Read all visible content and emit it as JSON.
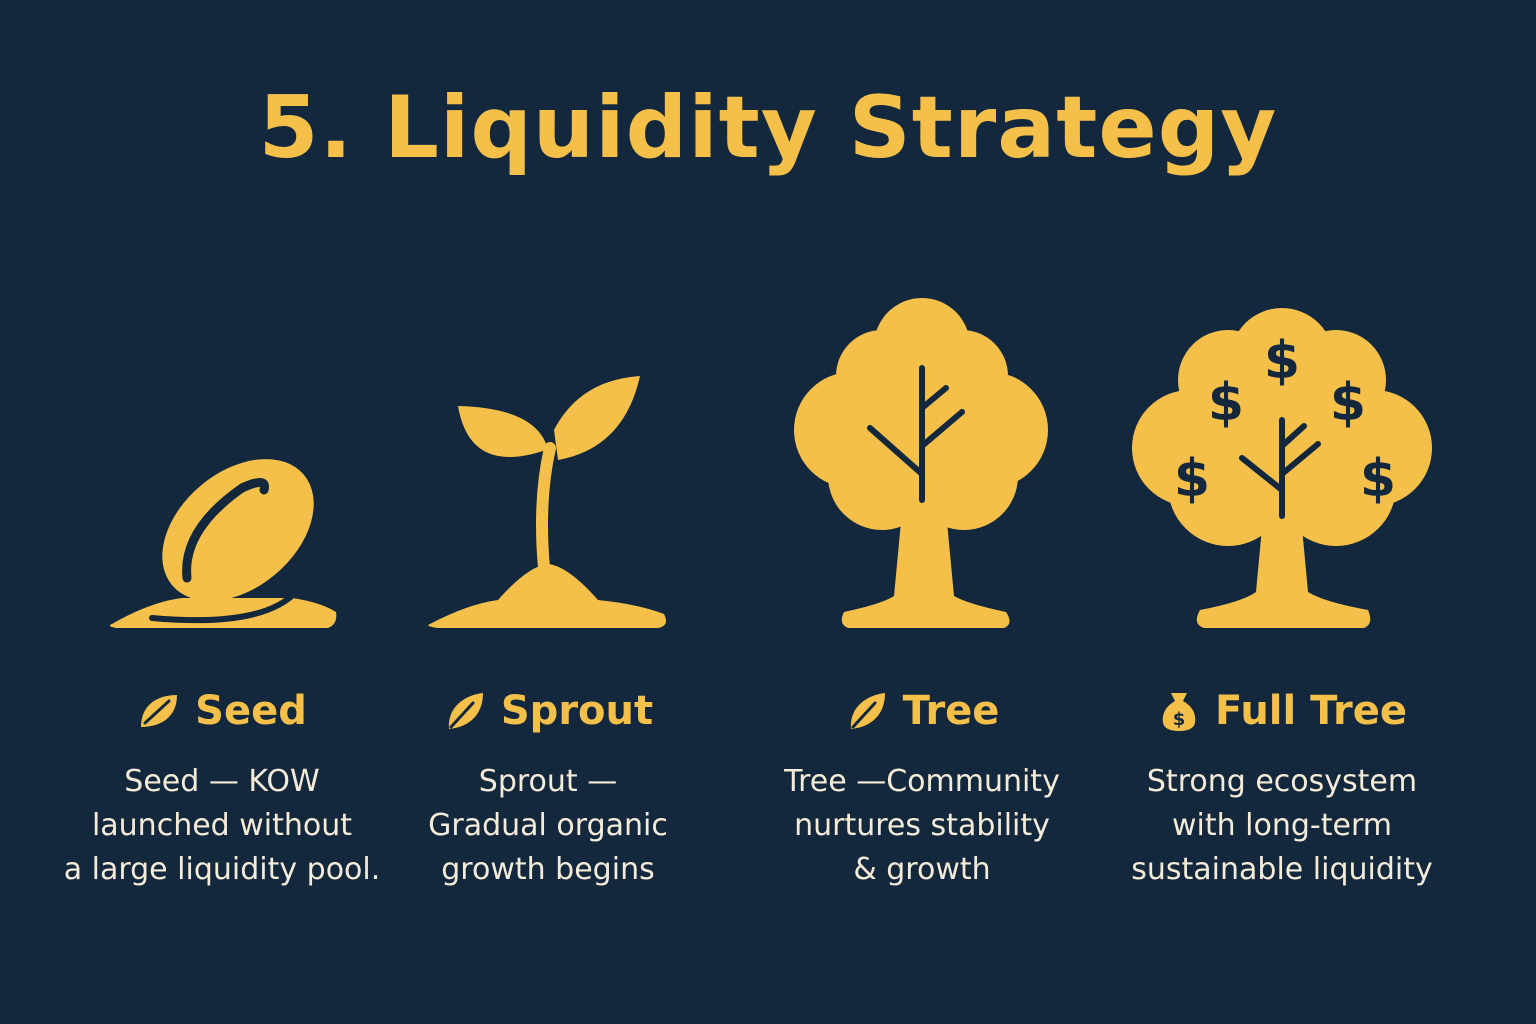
{
  "title": "5. Liquidity Strategy",
  "colors": {
    "background": "#13283d",
    "accent": "#f5c04a",
    "text": "#f4ecd8"
  },
  "stages": [
    {
      "icon": "leaf-icon",
      "illustration": "seed-illustration",
      "label": "Seed",
      "description": [
        "Seed — KOW",
        "launched without",
        "a large liquidity pool."
      ]
    },
    {
      "icon": "leaf-icon",
      "illustration": "sprout-illustration",
      "label": "Sprout",
      "description": [
        "Sprout —",
        "Gradual organic",
        "growth begins"
      ]
    },
    {
      "icon": "leaf-icon",
      "illustration": "tree-illustration",
      "label": "Tree",
      "description": [
        "Tree —Community",
        "nurtures stability",
        "& growth"
      ]
    },
    {
      "icon": "money-bag-icon",
      "illustration": "money-tree-illustration",
      "label": "Full Tree",
      "description": [
        "Strong ecosystem",
        "with long-term",
        "sustainable liquidity"
      ]
    }
  ]
}
